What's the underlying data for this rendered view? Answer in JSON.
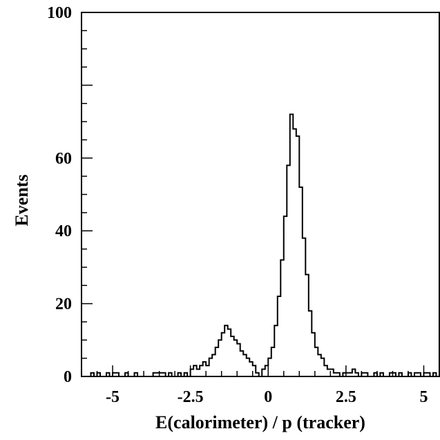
{
  "chart_data": {
    "type": "histogram",
    "title": "",
    "xlabel": "E(calorimeter) / p (tracker)",
    "ylabel": "Events",
    "xlim": [
      -6.0,
      5.5
    ],
    "ylim": [
      0,
      100
    ],
    "grid": false,
    "legend": "none",
    "line_color": "#000000",
    "x_ticks": [
      {
        "value": -5,
        "label": "-5"
      },
      {
        "value": -2.5,
        "label": "-2.5"
      },
      {
        "value": 0,
        "label": "0"
      },
      {
        "value": 2.5,
        "label": "2.5"
      },
      {
        "value": 5,
        "label": "5"
      }
    ],
    "y_ticks": [
      {
        "value": 0,
        "label": "0"
      },
      {
        "value": 20,
        "label": "20"
      },
      {
        "value": 40,
        "label": "40"
      },
      {
        "value": 60,
        "label": "60"
      },
      {
        "value": 100,
        "label": "100"
      }
    ],
    "series": [
      {
        "bin_width": 0.1,
        "x": [
          -6.0,
          -5.9,
          -5.8,
          -5.7,
          -5.6,
          -5.5,
          -5.4,
          -5.3,
          -5.2,
          -5.1,
          -5.0,
          -4.9,
          -4.8,
          -4.7,
          -4.6,
          -4.5,
          -4.4,
          -4.3,
          -4.2,
          -4.1,
          -4.0,
          -3.9,
          -3.8,
          -3.7,
          -3.6,
          -3.5,
          -3.4,
          -3.3,
          -3.2,
          -3.1,
          -3.0,
          -2.9,
          -2.8,
          -2.7,
          -2.6,
          -2.5,
          -2.4,
          -2.3,
          -2.2,
          -2.1,
          -2.0,
          -1.9,
          -1.8,
          -1.7,
          -1.6,
          -1.5,
          -1.4,
          -1.3,
          -1.2,
          -1.1,
          -1.0,
          -0.9,
          -0.8,
          -0.7,
          -0.6,
          -0.5,
          -0.4,
          -0.3,
          -0.2,
          -0.1,
          0.0,
          0.1,
          0.2,
          0.3,
          0.4,
          0.5,
          0.6,
          0.7,
          0.8,
          0.9,
          1.0,
          1.1,
          1.2,
          1.3,
          1.4,
          1.5,
          1.6,
          1.7,
          1.8,
          1.9,
          2.0,
          2.1,
          2.2,
          2.3,
          2.4,
          2.5,
          2.6,
          2.7,
          2.8,
          2.9,
          3.0,
          3.1,
          3.2,
          3.3,
          3.4,
          3.5,
          3.6,
          3.7,
          3.8,
          3.9,
          4.0,
          4.1,
          4.2,
          4.3,
          4.4,
          4.5,
          4.6,
          4.7,
          4.8,
          4.9,
          5.0,
          5.1,
          5.2,
          5.3,
          5.4
        ],
        "values": [
          0,
          0,
          0,
          1,
          0,
          1,
          0,
          0,
          1,
          0,
          1,
          1,
          0,
          0,
          1,
          0,
          0,
          1,
          0,
          0,
          0,
          0,
          0,
          1,
          1,
          1,
          1,
          0,
          1,
          0,
          0,
          1,
          0,
          1,
          0,
          2,
          3,
          2,
          3,
          4,
          3,
          5,
          6,
          8,
          10,
          12,
          14,
          13,
          11,
          10,
          9,
          7,
          6,
          5,
          4,
          3,
          1,
          0,
          2,
          3,
          5,
          8,
          14,
          22,
          32,
          44,
          58,
          72,
          68,
          66,
          52,
          38,
          28,
          18,
          12,
          8,
          6,
          5,
          3,
          2,
          2,
          1,
          1,
          0,
          1,
          1,
          1,
          2,
          1,
          0,
          1,
          1,
          0,
          0,
          1,
          0,
          1,
          0,
          0,
          1,
          1,
          0,
          1,
          0,
          0,
          1,
          0,
          1,
          1,
          0,
          1,
          1,
          0,
          1,
          0
        ]
      }
    ]
  }
}
